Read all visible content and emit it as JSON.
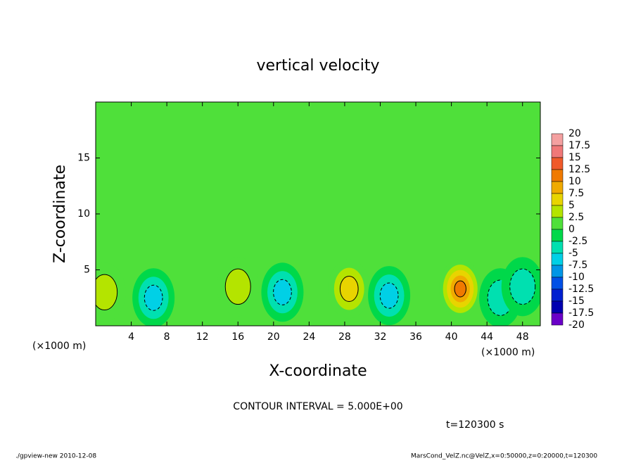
{
  "chart_data": {
    "type": "contour",
    "title": "vertical velocity",
    "x_label": "X-coordinate",
    "y_label": "Z-coordinate",
    "x_unit": "(×1000 m)",
    "contour_note": "CONTOUR INTERVAL = 5.000E+00",
    "time_label": "t=120300 s",
    "footer_left": "./gpview-new  2010-12-08",
    "footer_right": "MarsCond_VelZ.nc@VelZ,x=0:50000,z=0:20000,t=120300",
    "xlim": [
      0,
      50
    ],
    "ylim": [
      0,
      20
    ],
    "xticks": [
      4,
      8,
      12,
      16,
      20,
      24,
      28,
      32,
      36,
      40,
      44,
      48
    ],
    "yticks": [
      5,
      10,
      15
    ],
    "levels": [
      20,
      17.5,
      15,
      12.5,
      10,
      7.5,
      5,
      2.5,
      0,
      -2.5,
      -5,
      -7.5,
      -10,
      -12.5,
      -15,
      -17.5,
      -20
    ],
    "level_colors": [
      "#f4a0a0",
      "#f07878",
      "#f05a2a",
      "#f07a00",
      "#f0aa00",
      "#e8d400",
      "#b4e400",
      "#4fe03a",
      "#00d84a",
      "#00e0b0",
      "#00d0e6",
      "#0096e6",
      "#0050e6",
      "#0020d0",
      "#0000b0",
      "#6a00c8"
    ],
    "features": [
      {
        "x": 1,
        "z": 3,
        "value": 5
      },
      {
        "x": 6.5,
        "z": 2.5,
        "value": -7.5
      },
      {
        "x": 16,
        "z": 3.5,
        "value": 5
      },
      {
        "x": 21,
        "z": 3,
        "value": -7.5
      },
      {
        "x": 28.5,
        "z": 3.3,
        "value": 7.5
      },
      {
        "x": 33,
        "z": 2.7,
        "value": -7.5
      },
      {
        "x": 41,
        "z": 3.3,
        "value": 12.5
      },
      {
        "x": 45.5,
        "z": 2.5,
        "value": -5
      },
      {
        "x": 48,
        "z": 3.5,
        "value": -5
      }
    ]
  }
}
